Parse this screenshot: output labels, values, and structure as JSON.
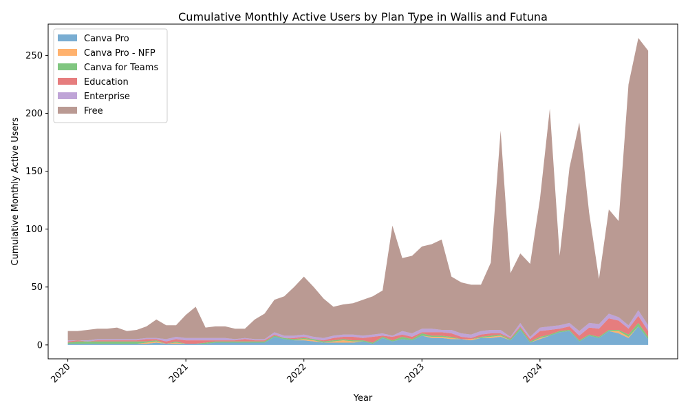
{
  "chart_data": {
    "type": "area",
    "stacked": true,
    "title": "Cumulative Monthly Active Users by Plan Type in Wallis and Futuna",
    "xlabel": "Year",
    "ylabel": "Cumulative Monthly Active Users",
    "ylim": [
      -12,
      277
    ],
    "y_ticks": [
      0,
      50,
      100,
      150,
      200,
      250
    ],
    "x_tick_labels": [
      "2020",
      "2021",
      "2022",
      "2023",
      "2024"
    ],
    "x_tick_values": [
      "2020-01",
      "2021-01",
      "2022-01",
      "2023-01",
      "2024-01"
    ],
    "xlim": [
      "2019-11",
      "2025-03"
    ],
    "legend_position": "top-left",
    "grid": false,
    "x": [
      "2020-01",
      "2020-02",
      "2020-03",
      "2020-04",
      "2020-05",
      "2020-06",
      "2020-07",
      "2020-08",
      "2020-09",
      "2020-10",
      "2020-11",
      "2020-12",
      "2021-01",
      "2021-02",
      "2021-03",
      "2021-04",
      "2021-05",
      "2021-06",
      "2021-07",
      "2021-08",
      "2021-09",
      "2021-10",
      "2021-11",
      "2021-12",
      "2022-01",
      "2022-02",
      "2022-03",
      "2022-04",
      "2022-05",
      "2022-06",
      "2022-07",
      "2022-08",
      "2022-09",
      "2022-10",
      "2022-11",
      "2022-12",
      "2023-01",
      "2023-02",
      "2023-03",
      "2023-04",
      "2023-05",
      "2023-06",
      "2023-07",
      "2023-08",
      "2023-09",
      "2023-10",
      "2023-11",
      "2023-12",
      "2024-01",
      "2024-02",
      "2024-03",
      "2024-04",
      "2024-05",
      "2024-06",
      "2024-07",
      "2024-08",
      "2024-09",
      "2024-10",
      "2024-11",
      "2024-12"
    ],
    "series": [
      {
        "name": "Canva Pro",
        "color": "#1f77b4",
        "values": [
          1,
          1,
          1,
          1,
          1,
          1,
          1,
          1,
          1,
          2,
          1,
          1,
          1,
          1,
          1,
          2,
          2,
          2,
          2,
          2,
          2,
          7,
          5,
          4,
          4,
          3,
          2,
          2,
          2,
          2,
          3,
          1,
          6,
          3,
          5,
          4,
          8,
          6,
          6,
          5,
          5,
          4,
          6,
          6,
          7,
          4,
          13,
          2,
          5,
          8,
          11,
          12,
          3,
          8,
          6,
          12,
          10,
          6,
          16,
          5
        ]
      },
      {
        "name": "Canva Pro - NFP",
        "color": "#ff7f0e",
        "values": [
          0,
          0,
          0,
          0,
          0,
          0,
          0,
          0,
          1,
          1,
          0,
          1,
          0,
          0,
          0,
          0,
          0,
          0,
          0,
          0,
          0,
          0,
          0,
          0,
          1,
          1,
          0,
          1,
          2,
          1,
          0,
          0,
          0,
          0,
          0,
          0,
          0,
          1,
          1,
          1,
          0,
          1,
          0,
          1,
          1,
          0,
          0,
          0,
          1,
          0,
          0,
          0,
          0,
          0,
          0,
          0,
          2,
          1,
          0,
          0
        ]
      },
      {
        "name": "Canva for Teams",
        "color": "#2ca02c",
        "values": [
          1,
          2,
          2,
          2,
          2,
          2,
          2,
          2,
          1,
          1,
          0,
          1,
          0,
          0,
          1,
          1,
          1,
          1,
          1,
          1,
          1,
          1,
          1,
          1,
          1,
          1,
          1,
          1,
          1,
          1,
          1,
          1,
          1,
          1,
          2,
          1,
          2,
          1,
          1,
          1,
          0,
          0,
          1,
          1,
          1,
          1,
          2,
          1,
          1,
          1,
          1,
          1,
          1,
          1,
          1,
          1,
          1,
          2,
          3,
          2
        ]
      },
      {
        "name": "Education",
        "color": "#d62728",
        "values": [
          1,
          1,
          0,
          1,
          1,
          1,
          1,
          1,
          2,
          1,
          2,
          2,
          3,
          3,
          2,
          1,
          1,
          1,
          2,
          1,
          1,
          1,
          0,
          1,
          1,
          0,
          1,
          2,
          2,
          3,
          2,
          5,
          1,
          3,
          2,
          2,
          1,
          3,
          3,
          3,
          2,
          1,
          2,
          2,
          1,
          1,
          1,
          2,
          5,
          4,
          2,
          3,
          4,
          6,
          7,
          10,
          8,
          5,
          6,
          5
        ]
      },
      {
        "name": "Enterprise",
        "color": "#9467bd",
        "values": [
          1,
          0,
          1,
          1,
          1,
          1,
          1,
          1,
          1,
          1,
          2,
          2,
          2,
          2,
          2,
          2,
          2,
          1,
          1,
          1,
          1,
          2,
          2,
          2,
          2,
          2,
          2,
          2,
          2,
          2,
          2,
          2,
          2,
          1,
          3,
          3,
          3,
          3,
          2,
          3,
          3,
          3,
          3,
          3,
          3,
          1,
          3,
          2,
          3,
          3,
          3,
          3,
          4,
          4,
          4,
          4,
          3,
          3,
          5,
          5
        ]
      },
      {
        "name": "Free",
        "color": "#8c564b",
        "values": [
          8,
          8,
          9,
          9,
          9,
          10,
          7,
          8,
          10,
          16,
          12,
          10,
          20,
          27,
          9,
          10,
          10,
          9,
          8,
          17,
          22,
          28,
          34,
          42,
          50,
          43,
          34,
          25,
          26,
          27,
          31,
          33,
          37,
          95,
          63,
          67,
          71,
          73,
          78,
          46,
          44,
          43,
          40,
          58,
          172,
          55,
          60,
          63,
          111,
          188,
          60,
          134,
          180,
          95,
          39,
          90,
          83,
          208,
          235,
          237
        ]
      }
    ]
  }
}
